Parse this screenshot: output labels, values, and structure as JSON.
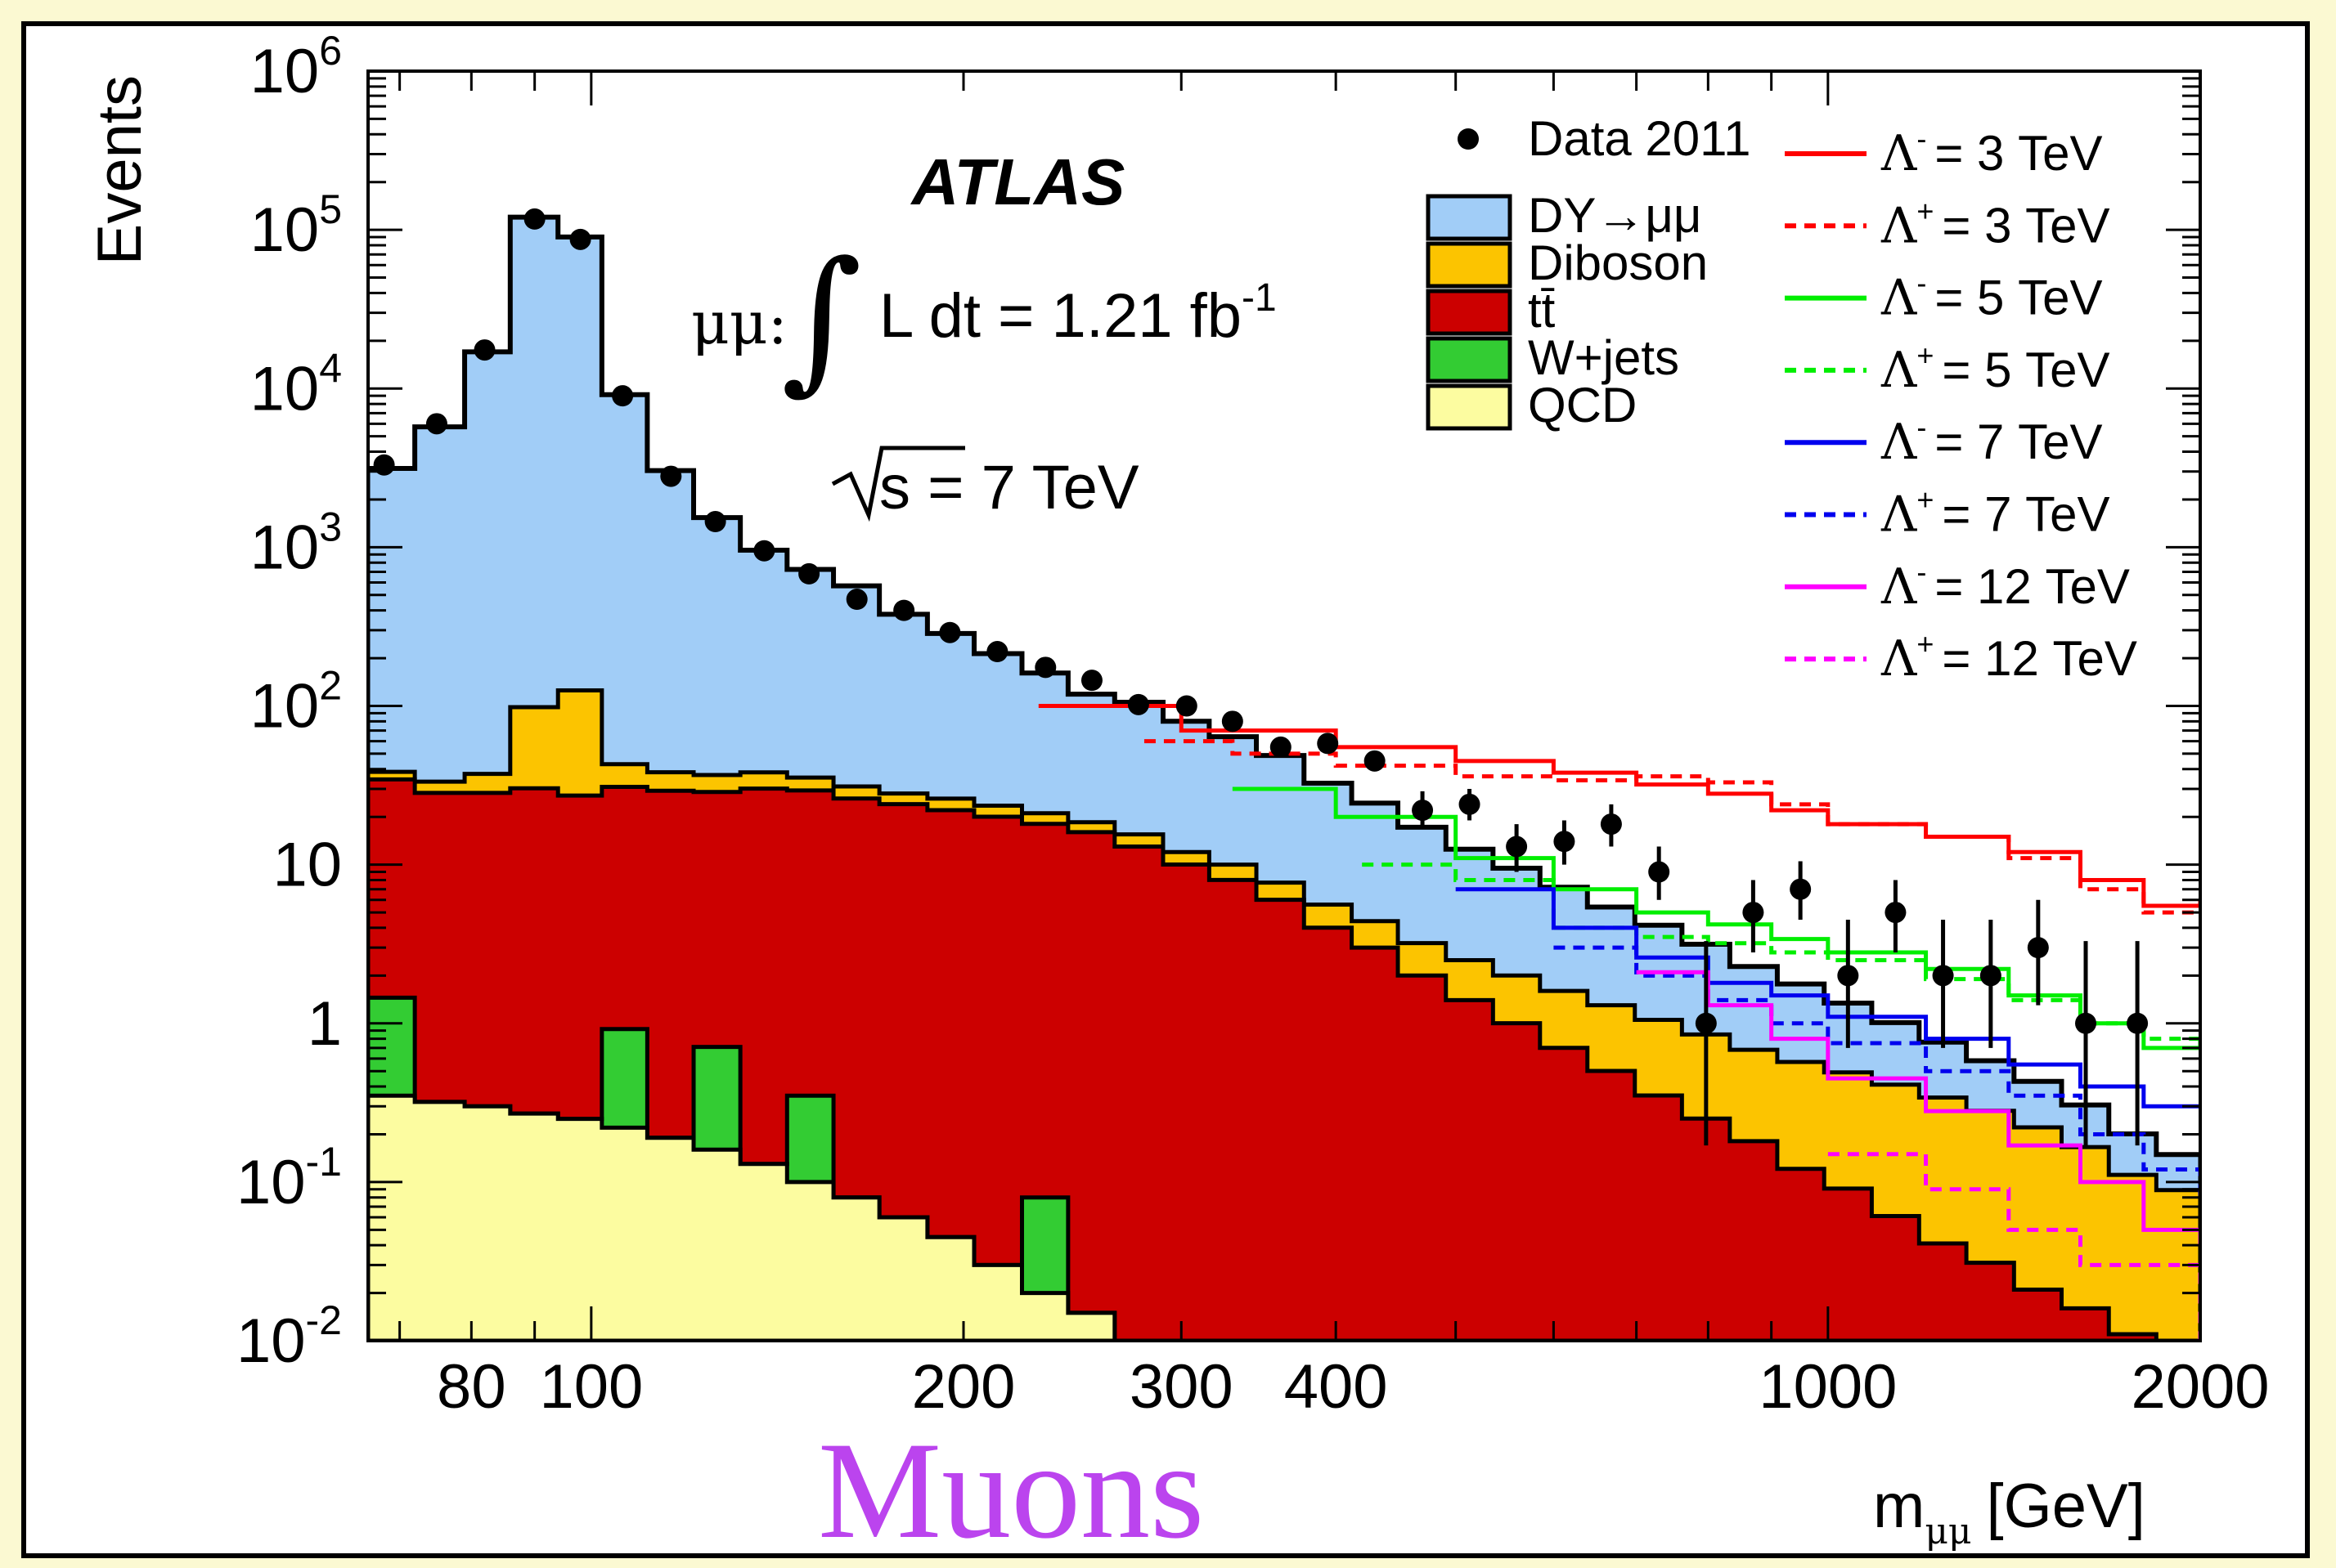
{
  "chart_data": {
    "type": "histogram",
    "experiment": "ATLAS",
    "channel": "μμ:",
    "luminosity_text": "L dt = 1.21 fb",
    "luminosity_exp": "-1",
    "energy_text": "s = 7 TeV",
    "panel_label": "Muons",
    "ylabel": "Events",
    "xlabel": "m",
    "xlabel_sub": "μμ",
    "xlabel_unit": "[GeV]",
    "xscale": "log",
    "yscale": "log",
    "xlim": [
      66,
      2000
    ],
    "ylim": [
      0.01,
      1000000
    ],
    "x_ticks": [
      "80",
      "100",
      "200",
      "300",
      "400",
      "1000",
      "2000"
    ],
    "y_ticks": [
      {
        "base": "10",
        "exp": "-2"
      },
      {
        "base": "10",
        "exp": "-1"
      },
      {
        "base": "1",
        "exp": ""
      },
      {
        "base": "10",
        "exp": ""
      },
      {
        "base": "10",
        "exp": "2"
      },
      {
        "base": "10",
        "exp": "3"
      },
      {
        "base": "10",
        "exp": "4"
      },
      {
        "base": "10",
        "exp": "5"
      },
      {
        "base": "10",
        "exp": "6"
      }
    ],
    "bin_edges": [
      66,
      72,
      79,
      86,
      94,
      102,
      111,
      121,
      132,
      144,
      157,
      171,
      187,
      204,
      223,
      243,
      265,
      290,
      316,
      345,
      377,
      412,
      449,
      491,
      536,
      585,
      639,
      698,
      762,
      833,
      910,
      993,
      1085,
      1185,
      1294,
      1414,
      1545,
      1687,
      1843,
      2000
    ],
    "backgrounds": [
      {
        "name": "DY→μμ",
        "color": "#a1cdf7",
        "values": [
          3100,
          5700,
          17000,
          120000,
          90000,
          9100,
          3000,
          1500,
          920,
          690,
          540,
          350,
          260,
          190,
          140,
          100,
          90,
          68,
          54,
          41,
          27,
          20,
          14,
          10,
          7.5,
          5.6,
          4.1,
          3.1,
          2.3,
          1.6,
          1.2,
          0.85,
          0.6,
          0.42,
          0.3,
          0.21,
          0.14,
          0.09,
          0.06
        ]
      },
      {
        "name": "Diboson",
        "color": "#fcc400",
        "values": [
          4,
          5,
          9,
          68,
          98,
          12,
          9,
          8,
          8,
          6,
          5,
          4,
          4,
          3.5,
          3,
          2.5,
          2.5,
          2,
          2,
          1.7,
          1.6,
          1.4,
          1.2,
          1.1,
          1.0,
          0.9,
          0.8,
          0.7,
          0.6,
          0.5,
          0.45,
          0.4,
          0.35,
          0.3,
          0.25,
          0.2,
          0.15,
          0.1,
          0.08
        ]
      },
      {
        "name": "tt̄",
        "color": "#cc0000",
        "values": [
          33,
          28,
          28,
          30,
          27,
          30,
          29,
          28,
          30,
          29,
          26,
          24,
          22,
          20,
          18,
          16,
          13,
          10,
          8,
          6,
          4,
          3,
          2,
          1.4,
          1.0,
          0.7,
          0.5,
          0.35,
          0.25,
          0.18,
          0.12,
          0.09,
          0.06,
          0.04,
          0.03,
          0.02,
          0.015,
          0.01,
          0.008
        ]
      },
      {
        "name": "W+jets",
        "color": "#33cc33",
        "values": [
          1.1,
          0,
          0,
          0,
          0,
          0.7,
          0,
          0.55,
          0,
          0.25,
          0,
          0,
          0,
          0,
          0.06,
          0,
          0,
          0,
          0,
          0,
          0,
          0,
          0,
          0,
          0,
          0,
          0,
          0,
          0,
          0,
          0,
          0,
          0,
          0,
          0,
          0,
          0,
          0,
          0
        ]
      },
      {
        "name": "QCD",
        "color": "#fcfca0",
        "values": [
          0.35,
          0.32,
          0.3,
          0.27,
          0.25,
          0.22,
          0.19,
          0.16,
          0.13,
          0.1,
          0.08,
          0.06,
          0.045,
          0.03,
          0.02,
          0.015,
          0.01,
          0.008,
          0.006,
          0.004,
          0.003,
          0.002,
          0.0015,
          0.001,
          0.001,
          0.001,
          0.001,
          0.001,
          0.001,
          0.001,
          0.001,
          0.001,
          0.001,
          0.001,
          0.001,
          0.001,
          0.001,
          0.001,
          0.001
        ]
      }
    ],
    "signals": [
      {
        "label": "Λ",
        "sign": "-",
        "value": "=  3 TeV",
        "color": "#ff0000",
        "dashed": false,
        "points": [
          [
            230,
            100
          ],
          [
            300,
            70
          ],
          [
            400,
            55
          ],
          [
            500,
            45
          ],
          [
            600,
            38
          ],
          [
            700,
            32
          ],
          [
            800,
            28
          ],
          [
            900,
            22
          ],
          [
            1000,
            18
          ],
          [
            1200,
            15
          ],
          [
            1400,
            12
          ],
          [
            1600,
            8
          ],
          [
            1800,
            5.5
          ],
          [
            2000,
            6
          ]
        ]
      },
      {
        "label": "Λ",
        "sign": "+",
        "value": "=  3 TeV",
        "color": "#ff0000",
        "dashed": true,
        "points": [
          [
            280,
            60
          ],
          [
            330,
            50
          ],
          [
            400,
            42
          ],
          [
            500,
            36
          ],
          [
            600,
            34
          ],
          [
            700,
            36
          ],
          [
            800,
            33
          ],
          [
            900,
            24
          ],
          [
            1000,
            18
          ],
          [
            1200,
            15
          ],
          [
            1400,
            11
          ],
          [
            1600,
            7
          ],
          [
            1800,
            5
          ],
          [
            2000,
            5
          ]
        ]
      },
      {
        "label": "Λ",
        "sign": "-",
        "value": "=  5 TeV",
        "color": "#00ee00",
        "dashed": false,
        "points": [
          [
            330,
            30
          ],
          [
            400,
            20
          ],
          [
            500,
            11
          ],
          [
            600,
            7
          ],
          [
            700,
            5
          ],
          [
            800,
            4.2
          ],
          [
            900,
            3.4
          ],
          [
            1000,
            2.8
          ],
          [
            1200,
            2.2
          ],
          [
            1400,
            1.5
          ],
          [
            1600,
            1.0
          ],
          [
            1800,
            0.7
          ],
          [
            2000,
            0.8
          ]
        ]
      },
      {
        "label": "Λ",
        "sign": "+",
        "value": "=  5 TeV",
        "color": "#00ee00",
        "dashed": true,
        "points": [
          [
            420,
            10
          ],
          [
            500,
            8
          ],
          [
            600,
            4
          ],
          [
            700,
            3.5
          ],
          [
            800,
            3.2
          ],
          [
            900,
            2.8
          ],
          [
            1000,
            2.5
          ],
          [
            1200,
            1.9
          ],
          [
            1400,
            1.4
          ],
          [
            1600,
            1.0
          ],
          [
            1800,
            0.8
          ],
          [
            2000,
            0.9
          ]
        ]
      },
      {
        "label": "Λ",
        "sign": "-",
        "value": "=  7 TeV",
        "color": "#0000ee",
        "dashed": false,
        "points": [
          [
            500,
            7
          ],
          [
            600,
            4
          ],
          [
            700,
            2.6
          ],
          [
            800,
            1.8
          ],
          [
            900,
            1.5
          ],
          [
            1000,
            1.1
          ],
          [
            1200,
            0.8
          ],
          [
            1400,
            0.55
          ],
          [
            1600,
            0.4
          ],
          [
            1800,
            0.3
          ],
          [
            2000,
            0.3
          ]
        ]
      },
      {
        "label": "Λ",
        "sign": "+",
        "value": "=  7 TeV",
        "color": "#0000ee",
        "dashed": true,
        "points": [
          [
            600,
            3
          ],
          [
            700,
            2
          ],
          [
            800,
            1.4
          ],
          [
            900,
            1.0
          ],
          [
            1000,
            0.75
          ],
          [
            1200,
            0.5
          ],
          [
            1400,
            0.35
          ],
          [
            1600,
            0.2
          ],
          [
            1800,
            0.12
          ],
          [
            2000,
            0.08
          ]
        ]
      },
      {
        "label": "Λ",
        "sign": "-",
        "value": "= 12 TeV",
        "color": "#ff00ff",
        "dashed": false,
        "points": [
          [
            700,
            2.1
          ],
          [
            800,
            1.3
          ],
          [
            900,
            0.8
          ],
          [
            1000,
            0.45
          ],
          [
            1200,
            0.28
          ],
          [
            1400,
            0.17
          ],
          [
            1600,
            0.1
          ],
          [
            1800,
            0.05
          ],
          [
            2000,
            0.04
          ]
        ]
      },
      {
        "label": "Λ",
        "sign": "+",
        "value": "= 12 TeV",
        "color": "#ff00ff",
        "dashed": true,
        "points": [
          [
            1000,
            0.15
          ],
          [
            1200,
            0.09
          ],
          [
            1400,
            0.05
          ],
          [
            1600,
            0.03
          ],
          [
            1800,
            0.03
          ],
          [
            2000,
            0.01
          ]
        ]
      }
    ],
    "data": {
      "name": "Data 2011",
      "points": [
        {
          "x": 68,
          "y": 3300,
          "lo": 3300,
          "hi": 3300
        },
        {
          "x": 75,
          "y": 6000,
          "lo": 6000,
          "hi": 6000
        },
        {
          "x": 82,
          "y": 17500,
          "lo": 17500,
          "hi": 17500
        },
        {
          "x": 90,
          "y": 117000,
          "lo": 117000,
          "hi": 117000
        },
        {
          "x": 98,
          "y": 87000,
          "lo": 87000,
          "hi": 87000
        },
        {
          "x": 106,
          "y": 9000,
          "lo": 9000,
          "hi": 9000
        },
        {
          "x": 116,
          "y": 2800,
          "lo": 2800,
          "hi": 2800
        },
        {
          "x": 126,
          "y": 1450,
          "lo": 1450,
          "hi": 1450
        },
        {
          "x": 138,
          "y": 950,
          "lo": 950,
          "hi": 950
        },
        {
          "x": 150,
          "y": 680,
          "lo": 680,
          "hi": 680
        },
        {
          "x": 164,
          "y": 470,
          "lo": 470,
          "hi": 470
        },
        {
          "x": 179,
          "y": 400,
          "lo": 400,
          "hi": 400
        },
        {
          "x": 195,
          "y": 290,
          "lo": 290,
          "hi": 290
        },
        {
          "x": 213,
          "y": 220,
          "lo": 220,
          "hi": 220
        },
        {
          "x": 233,
          "y": 175,
          "lo": 175,
          "hi": 175
        },
        {
          "x": 254,
          "y": 145,
          "lo": 145,
          "hi": 145
        },
        {
          "x": 277,
          "y": 102,
          "lo": 102,
          "hi": 102
        },
        {
          "x": 303,
          "y": 100,
          "lo": 100,
          "hi": 100
        },
        {
          "x": 330,
          "y": 80,
          "lo": 80,
          "hi": 80
        },
        {
          "x": 361,
          "y": 55,
          "lo": 55,
          "hi": 55
        },
        {
          "x": 394,
          "y": 58,
          "lo": 58,
          "hi": 58
        },
        {
          "x": 430,
          "y": 45,
          "lo": 45,
          "hi": 45
        },
        {
          "x": 470,
          "y": 22,
          "lo": 17,
          "hi": 29
        },
        {
          "x": 513,
          "y": 24,
          "lo": 19,
          "hi": 30
        },
        {
          "x": 560,
          "y": 13,
          "lo": 9,
          "hi": 18
        },
        {
          "x": 612,
          "y": 14,
          "lo": 10,
          "hi": 19
        },
        {
          "x": 668,
          "y": 18,
          "lo": 13,
          "hi": 24
        },
        {
          "x": 730,
          "y": 9,
          "lo": 6,
          "hi": 13
        },
        {
          "x": 797,
          "y": 1,
          "lo": 0.17,
          "hi": 3.3
        },
        {
          "x": 870,
          "y": 5,
          "lo": 2.8,
          "hi": 8
        },
        {
          "x": 950,
          "y": 7,
          "lo": 4.5,
          "hi": 10.5
        },
        {
          "x": 1038,
          "y": 2,
          "lo": 0.7,
          "hi": 4.5
        },
        {
          "x": 1134,
          "y": 5,
          "lo": 2.8,
          "hi": 8
        },
        {
          "x": 1239,
          "y": 2,
          "lo": 0.7,
          "hi": 4.5
        },
        {
          "x": 1354,
          "y": 2,
          "lo": 0.7,
          "hi": 4.5
        },
        {
          "x": 1479,
          "y": 3,
          "lo": 1.3,
          "hi": 6
        },
        {
          "x": 1616,
          "y": 1,
          "lo": 0.17,
          "hi": 3.3
        },
        {
          "x": 1779,
          "y": 1,
          "lo": 0.17,
          "hi": 3.3
        }
      ]
    }
  }
}
